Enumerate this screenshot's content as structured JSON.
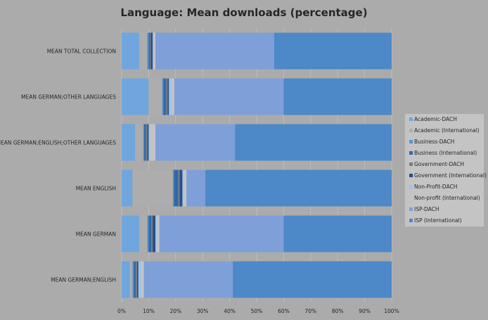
{
  "chart_data": {
    "type": "bar",
    "orientation": "horizontal",
    "stacked": true,
    "title": "Language: Mean downloads (percentage)",
    "categories": [
      "MEAN TOTAL COLLECTION",
      "MEAN GERMAN;OTHER LANGUAGES",
      "MEAN GERMAN;ENGLISH;OTHER LANGUAGES",
      "MEAN ENGLISH",
      "MEAN GERMAN",
      "MEAN GERMAN;ENGLISH"
    ],
    "xlim": [
      0,
      100
    ],
    "xticks": [
      "0%",
      "10%",
      "20%",
      "30%",
      "40%",
      "50%",
      "60%",
      "70%",
      "80%",
      "90%",
      "100%"
    ],
    "grid": true,
    "legend_position": "right",
    "series": [
      {
        "name": "Academic-DACH",
        "color": "#6fa6dd",
        "values": [
          6.5,
          10,
          5,
          4,
          6.5,
          3
        ]
      },
      {
        "name": "Academic (International)",
        "color": "#adadad",
        "values": [
          3,
          5,
          3,
          15,
          3,
          1
        ]
      },
      {
        "name": "Business-DACH",
        "color": "#5a8fd0",
        "values": [
          0.5,
          0.5,
          0.3,
          0.4,
          0.5,
          0.5
        ]
      },
      {
        "name": "Business (International)",
        "color": "#2f6aa8",
        "values": [
          0.5,
          1,
          0.7,
          1.6,
          1,
          0.7
        ]
      },
      {
        "name": "Government-DACH",
        "color": "#7d7d7d",
        "values": [
          0.3,
          0.5,
          0.5,
          0.5,
          0.5,
          0.5
        ]
      },
      {
        "name": "Government (International)",
        "color": "#2a4d86",
        "values": [
          0.7,
          0.5,
          0.5,
          1,
          1,
          0.5
        ]
      },
      {
        "name": "Non-Profit-DACH",
        "color": "#9ec4ea",
        "values": [
          0.5,
          1,
          0.5,
          0.5,
          0.5,
          1
        ]
      },
      {
        "name": "Non-profit (International)",
        "color": "#c4c4c4",
        "values": [
          0.5,
          1,
          2,
          1,
          1,
          1
        ]
      },
      {
        "name": "ISP-DACH",
        "color": "#7f9fd8",
        "values": [
          44,
          40.5,
          29.5,
          7,
          46,
          33
        ]
      },
      {
        "name": "ISP (International)",
        "color": "#4d88c8",
        "values": [
          43.5,
          40,
          58,
          69,
          40,
          58.8
        ]
      }
    ]
  }
}
